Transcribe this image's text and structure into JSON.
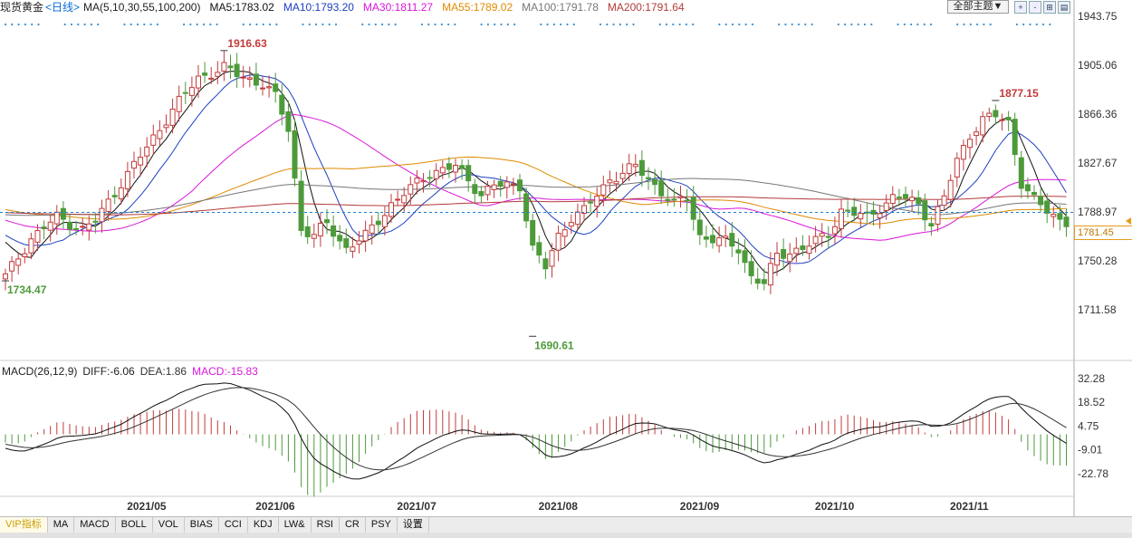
{
  "header": {
    "symbol": "现货黄金",
    "period": "<日线>",
    "ma_params": "MA(5,10,30,55,100,200)",
    "ma_values": [
      {
        "label": "MA5:1783.02",
        "color": "#111111"
      },
      {
        "label": "MA10:1793.20",
        "color": "#1d3fbf"
      },
      {
        "label": "MA30:1811.27",
        "color": "#d916d9"
      },
      {
        "label": "MA55:1789.02",
        "color": "#e08a00"
      },
      {
        "label": "MA100:1791.78",
        "color": "#777777"
      },
      {
        "label": "MA200:1791.64",
        "color": "#b33a3a"
      }
    ],
    "theme_button": "全部主题▼",
    "tool_icons": [
      "+",
      "-",
      "⊞",
      "▤"
    ]
  },
  "current_price": "1781.45",
  "macd": {
    "params": "MACD(26,12,9)",
    "diff": "DIFF:-6.06",
    "dea": "DEA:1.86",
    "macd": "MACD:-15.83"
  },
  "tabs": [
    "VIP指标",
    "MA",
    "MACD",
    "BOLL",
    "VOL",
    "BIAS",
    "CCI",
    "KDJ",
    "LW&",
    "RSI",
    "CR",
    "PSY",
    "设置"
  ],
  "chart_data": {
    "type": "candlestick",
    "price_axis": {
      "ylim": [
        1680,
        1950
      ],
      "ticks": [
        "1943.75",
        "1905.06",
        "1866.36",
        "1827.67",
        "1788.97",
        "1750.28",
        "1711.58"
      ]
    },
    "macd_axis": {
      "ylim": [
        -33,
        38
      ],
      "ticks": [
        "32.28",
        "18.52",
        "4.75",
        "-9.01",
        "-22.78"
      ]
    },
    "x_labels": [
      {
        "label": "2021/05",
        "index": 22
      },
      {
        "label": "2021/06",
        "index": 42
      },
      {
        "label": "2021/07",
        "index": 64
      },
      {
        "label": "2021/08",
        "index": 86
      },
      {
        "label": "2021/09",
        "index": 108
      },
      {
        "label": "2021/10",
        "index": 129
      },
      {
        "label": "2021/11",
        "index": 150
      }
    ],
    "annotations": [
      {
        "text": "1916.63",
        "index": 34,
        "value": 1916.63,
        "kind": "high"
      },
      {
        "text": "1734.47",
        "index": 0,
        "value": 1734.47,
        "kind": "low"
      },
      {
        "text": "1690.61",
        "index": 82,
        "value": 1690.61,
        "kind": "low"
      },
      {
        "text": "1877.15",
        "index": 154,
        "value": 1877.15,
        "kind": "high"
      }
    ],
    "close_anchors": [
      [
        0,
        1738
      ],
      [
        4,
        1768
      ],
      [
        8,
        1785
      ],
      [
        12,
        1775
      ],
      [
        14,
        1782
      ],
      [
        18,
        1812
      ],
      [
        22,
        1840
      ],
      [
        26,
        1870
      ],
      [
        30,
        1895
      ],
      [
        34,
        1903
      ],
      [
        36,
        1898
      ],
      [
        40,
        1890
      ],
      [
        42,
        1880
      ],
      [
        44,
        1855
      ],
      [
        46,
        1775
      ],
      [
        48,
        1770
      ],
      [
        50,
        1780
      ],
      [
        53,
        1760
      ],
      [
        56,
        1770
      ],
      [
        60,
        1795
      ],
      [
        64,
        1812
      ],
      [
        66,
        1820
      ],
      [
        70,
        1825
      ],
      [
        74,
        1803
      ],
      [
        76,
        1810
      ],
      [
        80,
        1810
      ],
      [
        82,
        1760
      ],
      [
        84,
        1745
      ],
      [
        86,
        1770
      ],
      [
        88,
        1785
      ],
      [
        90,
        1790
      ],
      [
        94,
        1815
      ],
      [
        98,
        1825
      ],
      [
        102,
        1805
      ],
      [
        104,
        1795
      ],
      [
        106,
        1800
      ],
      [
        108,
        1770
      ],
      [
        112,
        1765
      ],
      [
        114,
        1760
      ],
      [
        116,
        1738
      ],
      [
        118,
        1732
      ],
      [
        120,
        1755
      ],
      [
        124,
        1760
      ],
      [
        128,
        1772
      ],
      [
        130,
        1790
      ],
      [
        134,
        1785
      ],
      [
        138,
        1800
      ],
      [
        140,
        1800
      ],
      [
        142,
        1795
      ],
      [
        144,
        1780
      ],
      [
        146,
        1800
      ],
      [
        148,
        1830
      ],
      [
        150,
        1850
      ],
      [
        152,
        1862
      ],
      [
        154,
        1865
      ],
      [
        156,
        1860
      ],
      [
        158,
        1812
      ],
      [
        160,
        1798
      ],
      [
        162,
        1790
      ],
      [
        164,
        1783
      ],
      [
        165,
        1781
      ]
    ]
  }
}
